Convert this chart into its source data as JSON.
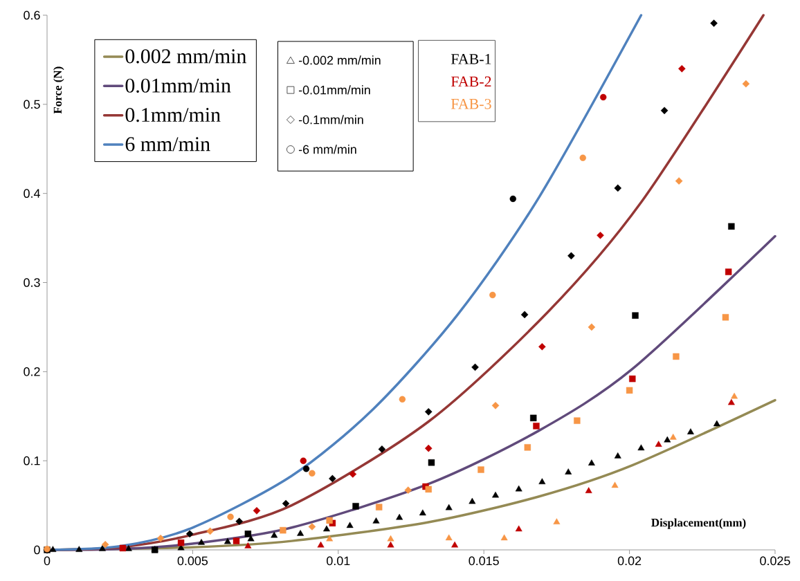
{
  "chart_data": {
    "type": "scatter",
    "xlabel": "Displacement(mm)",
    "ylabel": "Force (N)",
    "xlim": [
      0,
      0.025
    ],
    "ylim": [
      0,
      0.6
    ],
    "xticks": [
      0,
      0.005,
      0.01,
      0.015,
      0.02,
      0.025
    ],
    "yticks": [
      0,
      0.1,
      0.2,
      0.3,
      0.4,
      0.5,
      0.6
    ],
    "legend": "top left",
    "series": [
      {
        "name": "0.002 mm/min",
        "type": "line",
        "marker": "none",
        "color": "#948a54",
        "x": [
          0,
          0.005,
          0.0084,
          0.0131,
          0.0169,
          0.0201,
          0.025
        ],
        "values": [
          0,
          0.003,
          0.01,
          0.031,
          0.06,
          0.095,
          0.168
        ]
      },
      {
        "name": "0.01mm/min",
        "type": "line",
        "marker": "none",
        "color": "#604a7b",
        "x": [
          0,
          0.0025,
          0.005,
          0.0084,
          0.0131,
          0.0169,
          0.0201,
          0.025
        ],
        "values": [
          0,
          0.001,
          0.007,
          0.025,
          0.074,
          0.134,
          0.203,
          0.352
        ]
      },
      {
        "name": "0.1mm/min",
        "type": "line",
        "marker": "none",
        "color": "#953735",
        "x": [
          0,
          0.0025,
          0.005,
          0.0084,
          0.0131,
          0.0172,
          0.0204,
          0.0246
        ],
        "values": [
          0,
          0.003,
          0.017,
          0.05,
          0.144,
          0.267,
          0.39,
          0.6
        ]
      },
      {
        "name": "6 mm/min",
        "type": "line",
        "marker": "none",
        "color": "#4f81bd",
        "x": [
          0,
          0.0025,
          0.005,
          0.0084,
          0.0112,
          0.0141,
          0.0169,
          0.0204
        ],
        "values": [
          0,
          0.004,
          0.025,
          0.083,
          0.158,
          0.264,
          0.396,
          0.6
        ]
      },
      {
        "marker": "triangle",
        "color": "#000000",
        "x": [
          0.0002,
          0.0011,
          0.0019,
          0.0028,
          0.0037,
          0.0046,
          0.0053,
          0.0062,
          0.007,
          0.0078,
          0.0087,
          0.0096,
          0.0104,
          0.0113,
          0.0121,
          0.0129,
          0.0138,
          0.0146,
          0.0154,
          0.0162,
          0.017,
          0.0179,
          0.0187,
          0.0196,
          0.0204,
          0.0213,
          0.0221,
          0.023
        ],
        "values": [
          0,
          0,
          0.001,
          0.001,
          0,
          0.002,
          0.008,
          0.009,
          0.012,
          0.016,
          0.018,
          0.023,
          0.027,
          0.032,
          0.036,
          0.041,
          0.047,
          0.054,
          0.061,
          0.068,
          0.076,
          0.087,
          0.097,
          0.105,
          0.114,
          0.123,
          0.132,
          0.141
        ]
      },
      {
        "marker": "triangle",
        "color": "#c00000",
        "x": [
          0.0069,
          0.0094,
          0.0118,
          0.014,
          0.0162,
          0.0186,
          0.021,
          0.0235
        ],
        "values": [
          0.004,
          0.005,
          0.005,
          0.005,
          0.023,
          0.066,
          0.118,
          0.165
        ]
      },
      {
        "marker": "triangle",
        "color": "#f79646",
        "x": [
          0.0097,
          0.0118,
          0.0138,
          0.0157,
          0.0175,
          0.0195,
          0.0215,
          0.0236
        ],
        "values": [
          0.012,
          0.012,
          0.013,
          0.013,
          0.031,
          0.072,
          0.126,
          0.172
        ]
      },
      {
        "marker": "square",
        "color": "#000000",
        "x": [
          0,
          0.0037,
          0.0069,
          0.0106,
          0.0132,
          0.0167,
          0.0202,
          0.0235
        ],
        "values": [
          0,
          0,
          0.018,
          0.049,
          0.098,
          0.148,
          0.263,
          0.363
        ]
      },
      {
        "marker": "square",
        "color": "#c00000",
        "x": [
          0.0026,
          0.0046,
          0.0065,
          0.0098,
          0.013,
          0.0168,
          0.0201,
          0.0234
        ],
        "values": [
          0.002,
          0.008,
          0.01,
          0.03,
          0.071,
          0.139,
          0.192,
          0.312
        ]
      },
      {
        "marker": "square",
        "color": "#f79646",
        "x": [
          0.0081,
          0.0097,
          0.0114,
          0.0131,
          0.0149,
          0.0165,
          0.0182,
          0.02,
          0.0216,
          0.0233
        ],
        "values": [
          0.022,
          0.033,
          0.048,
          0.068,
          0.09,
          0.115,
          0.145,
          0.179,
          0.217,
          0.261
        ]
      },
      {
        "marker": "diamond",
        "color": "#000000",
        "x": [
          0.0049,
          0.0066,
          0.0082,
          0.0098,
          0.0115,
          0.0131,
          0.0147,
          0.0164,
          0.018,
          0.0196,
          0.0212,
          0.0229
        ],
        "values": [
          0.018,
          0.032,
          0.052,
          0.08,
          0.113,
          0.155,
          0.205,
          0.264,
          0.33,
          0.406,
          0.493,
          0.591
        ]
      },
      {
        "marker": "diamond",
        "color": "#c00000",
        "x": [
          0.0072,
          0.0105,
          0.0131,
          0.017,
          0.019,
          0.0218
        ],
        "values": [
          0.044,
          0.085,
          0.114,
          0.228,
          0.353,
          0.54
        ]
      },
      {
        "marker": "diamond",
        "color": "#f79646",
        "x": [
          0.002,
          0.0039,
          0.0056,
          0.0091,
          0.0124,
          0.0154,
          0.0187,
          0.0217,
          0.024
        ],
        "values": [
          0.006,
          0.013,
          0.021,
          0.026,
          0.067,
          0.162,
          0.25,
          0.414,
          0.523
        ]
      },
      {
        "marker": "circle",
        "color": "#000000",
        "x": [
          0,
          0.0089,
          0.016
        ],
        "values": [
          0,
          0.091,
          0.394
        ]
      },
      {
        "marker": "circle",
        "color": "#c00000",
        "x": [
          0.0088,
          0.0191
        ],
        "values": [
          0.1,
          0.508
        ]
      },
      {
        "marker": "circle",
        "color": "#f79646",
        "x": [
          0,
          0.0063,
          0.0091,
          0.0122,
          0.0153,
          0.0184
        ],
        "values": [
          0.001,
          0.037,
          0.086,
          0.169,
          0.286,
          0.44
        ]
      }
    ],
    "annotations": [
      "-0.002 mm/min",
      "-0.01mm/min",
      "-0.1mm/min",
      "-6 mm/min",
      "FAB-1",
      "FAB-2",
      "FAB-3"
    ]
  }
}
